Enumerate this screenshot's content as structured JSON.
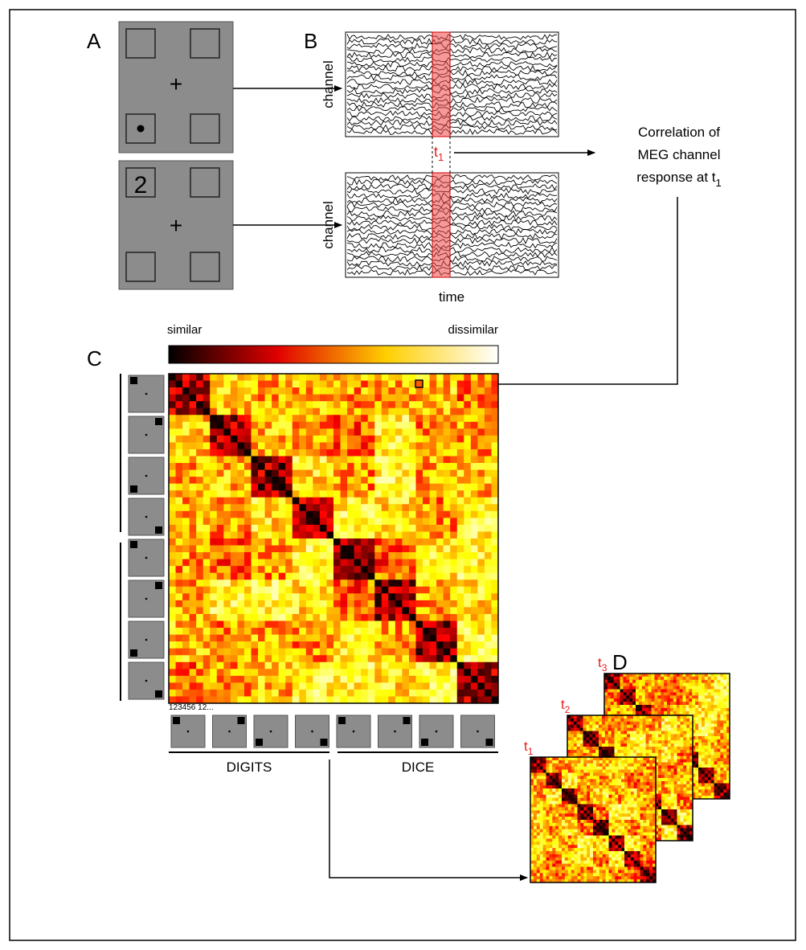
{
  "panel_a": {
    "label": "A",
    "digit": "2",
    "fixation": "+"
  },
  "panel_b": {
    "label": "B",
    "channel_label": "channel",
    "time_label": "time",
    "time_point": {
      "base": "t",
      "sub": "1"
    }
  },
  "correlation_note": {
    "line1": "Correlation of",
    "line2": "MEG channel",
    "line3": {
      "base": "response at t",
      "sub": "1"
    }
  },
  "panel_c": {
    "label": "C",
    "scale_low": "similar",
    "scale_high": "dissimilar",
    "index_note": "123456 12...",
    "group_left": "DIGITS",
    "group_right": "DICE"
  },
  "panel_d": {
    "label": "D",
    "stack": [
      {
        "base": "t",
        "sub": "1"
      },
      {
        "base": "t",
        "sub": "2"
      },
      {
        "base": "t",
        "sub": "3"
      }
    ]
  }
}
